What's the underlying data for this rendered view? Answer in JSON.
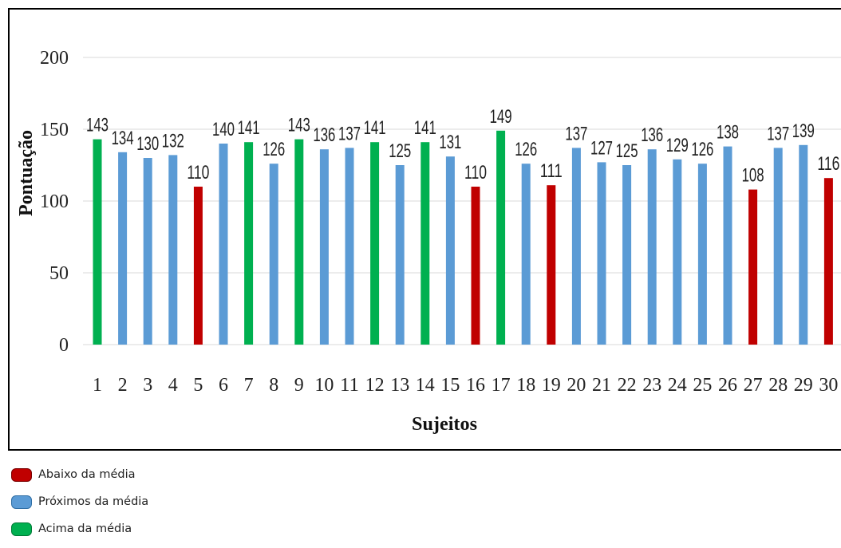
{
  "chart_data": {
    "type": "bar",
    "xlabel": "Sujeitos",
    "ylabel": "Pontuação",
    "ylim": [
      0,
      200
    ],
    "yticks": [
      0,
      50,
      100,
      150,
      200
    ],
    "grid": true,
    "categories": [
      "1",
      "2",
      "3",
      "4",
      "5",
      "6",
      "7",
      "8",
      "9",
      "10",
      "11",
      "12",
      "13",
      "14",
      "15",
      "16",
      "17",
      "18",
      "19",
      "20",
      "21",
      "22",
      "23",
      "24",
      "25",
      "26",
      "27",
      "28",
      "29",
      "30"
    ],
    "values": [
      143,
      134,
      130,
      132,
      110,
      140,
      141,
      126,
      143,
      136,
      137,
      141,
      125,
      141,
      131,
      110,
      149,
      126,
      111,
      137,
      127,
      125,
      136,
      129,
      126,
      138,
      108,
      137,
      139,
      116
    ],
    "groups": [
      "acima",
      "proximo",
      "proximo",
      "proximo",
      "abaixo",
      "proximo",
      "acima",
      "proximo",
      "acima",
      "proximo",
      "proximo",
      "acima",
      "proximo",
      "acima",
      "proximo",
      "abaixo",
      "acima",
      "proximo",
      "abaixo",
      "proximo",
      "proximo",
      "proximo",
      "proximo",
      "proximo",
      "proximo",
      "proximo",
      "abaixo",
      "proximo",
      "proximo",
      "abaixo"
    ],
    "colors": {
      "abaixo": "#c00000",
      "proximo": "#5b9bd5",
      "acima": "#00b050"
    },
    "legend_position": "bottom-left"
  },
  "legend": [
    {
      "key": "abaixo",
      "label": "Abaixo da média",
      "color": "#c00000"
    },
    {
      "key": "proximo",
      "label": "Próximos da média",
      "color": "#5b9bd5"
    },
    {
      "key": "acima",
      "label": "Acima da média",
      "color": "#00b050"
    }
  ]
}
